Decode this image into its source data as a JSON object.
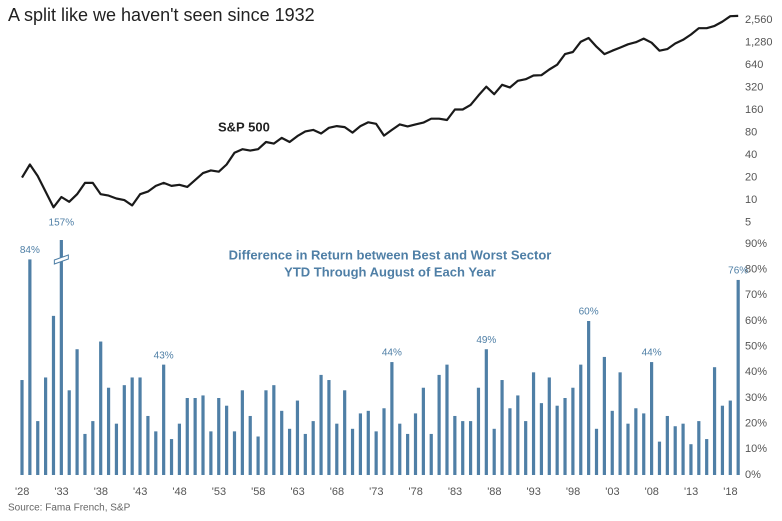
{
  "chart_data": [
    {
      "type": "line",
      "title": "A split like we haven't seen since 1932",
      "annotation": "S&P 500",
      "color": "#1a1a1a",
      "log_scale": true,
      "values": [
        20,
        30,
        21,
        13,
        8,
        11,
        9.5,
        12,
        17,
        17,
        12,
        11.5,
        10.5,
        10,
        8.5,
        12,
        13,
        15.5,
        17,
        15.5,
        16,
        15,
        18.5,
        23,
        25,
        24,
        30,
        43,
        48,
        46,
        48,
        60,
        57,
        68,
        60,
        72,
        83,
        87,
        78,
        93,
        98,
        95,
        80,
        98,
        110,
        105,
        73,
        87,
        103,
        97,
        103,
        109,
        123,
        123,
        118,
        163,
        163,
        188,
        252,
        330,
        262,
        350,
        322,
        395,
        415,
        465,
        470,
        560,
        650,
        900,
        960,
        1320,
        1480,
        1130,
        900,
        1000,
        1100,
        1220,
        1300,
        1450,
        1280,
        1000,
        1050,
        1250,
        1400,
        1650,
        2000,
        2000,
        2150,
        2450,
        2900,
        2920
      ],
      "ylim": [
        4.5,
        3100
      ],
      "yticks": [
        5,
        10,
        20,
        40,
        80,
        160,
        320,
        640,
        {
          "value": 1280,
          "label": "1,280"
        },
        {
          "value": 2560,
          "label": "2,560"
        }
      ]
    },
    {
      "type": "bar",
      "annotation": [
        "Difference in Return between Best and Worst Sector",
        "YTD Through August of Each Year"
      ],
      "color": "#4f7fa6",
      "source": "Source: Fama French, S&P",
      "categories": [
        "'28",
        null,
        null,
        null,
        null,
        "'33",
        null,
        null,
        null,
        null,
        "'38",
        null,
        null,
        null,
        null,
        "'43",
        null,
        null,
        null,
        null,
        "'48",
        null,
        null,
        null,
        null,
        "'53",
        null,
        null,
        null,
        null,
        "'58",
        null,
        null,
        null,
        null,
        "'63",
        null,
        null,
        null,
        null,
        "'68",
        null,
        null,
        null,
        null,
        "'73",
        null,
        null,
        null,
        null,
        "'78",
        null,
        null,
        null,
        null,
        "'83",
        null,
        null,
        null,
        null,
        "'88",
        null,
        null,
        null,
        null,
        "'93",
        null,
        null,
        null,
        null,
        "'98",
        null,
        null,
        null,
        null,
        "'03",
        null,
        null,
        null,
        null,
        "'08",
        null,
        null,
        null,
        null,
        "'13",
        null,
        null,
        null,
        null,
        "'18",
        null
      ],
      "values": [
        37,
        84,
        21,
        38,
        62,
        157,
        33,
        49,
        16,
        21,
        52,
        34,
        20,
        35,
        38,
        38,
        23,
        17,
        43,
        14,
        20,
        30,
        30,
        31,
        17,
        30,
        27,
        17,
        33,
        23,
        15,
        33,
        35,
        25,
        18,
        29,
        16,
        21,
        39,
        37,
        20,
        33,
        18,
        24,
        25,
        17,
        26,
        44,
        20,
        16,
        24,
        34,
        16,
        39,
        43,
        23,
        21,
        21,
        34,
        49,
        18,
        37,
        26,
        31,
        21,
        40,
        28,
        38,
        27,
        30,
        34,
        43,
        60,
        18,
        46,
        25,
        40,
        20,
        26,
        24,
        44,
        13,
        23,
        19,
        20,
        12,
        21,
        14,
        42,
        27,
        29,
        76
      ],
      "value_labels": [
        null,
        "84%",
        null,
        null,
        null,
        "157%",
        null,
        null,
        null,
        null,
        null,
        null,
        null,
        null,
        null,
        null,
        null,
        null,
        "43%",
        null,
        null,
        null,
        null,
        null,
        null,
        null,
        null,
        null,
        null,
        null,
        null,
        null,
        null,
        null,
        null,
        null,
        null,
        null,
        null,
        null,
        null,
        null,
        null,
        null,
        null,
        null,
        null,
        "44%",
        null,
        null,
        null,
        null,
        null,
        null,
        null,
        null,
        null,
        null,
        null,
        "49%",
        null,
        null,
        null,
        null,
        null,
        null,
        null,
        null,
        null,
        null,
        null,
        null,
        "60%",
        null,
        null,
        null,
        null,
        null,
        null,
        null,
        "44%",
        null,
        null,
        null,
        null,
        null,
        null,
        null,
        null,
        null,
        null,
        "76%"
      ],
      "ylim": [
        0,
        90
      ],
      "yticks": [
        {
          "value": 0,
          "label": "0%"
        },
        {
          "value": 10,
          "label": "10%"
        },
        {
          "value": 20,
          "label": "20%"
        },
        {
          "value": 30,
          "label": "30%"
        },
        {
          "value": 40,
          "label": "40%"
        },
        {
          "value": 50,
          "label": "50%"
        },
        {
          "value": 60,
          "label": "60%"
        },
        {
          "value": 70,
          "label": "70%"
        },
        {
          "value": 80,
          "label": "80%"
        },
        {
          "value": 90,
          "label": "90%"
        }
      ]
    }
  ]
}
